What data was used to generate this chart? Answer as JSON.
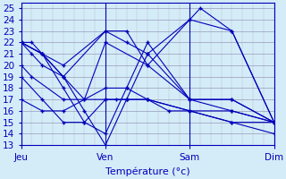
{
  "title": "Température (°c)",
  "bg_color": "#d4ecf7",
  "plot_bg_color": "#d4ecf7",
  "line_color": "#0000bb",
  "marker": "+",
  "grid_major_color": "#9999bb",
  "grid_minor_color": "#bbbbcc",
  "ylim": [
    13,
    25.5
  ],
  "yticks": [
    13,
    14,
    15,
    16,
    17,
    18,
    19,
    20,
    21,
    22,
    23,
    24,
    25
  ],
  "day_labels": [
    "Jeu",
    "Ven",
    "Sam",
    "Dim"
  ],
  "day_positions": [
    0,
    8,
    16,
    24
  ],
  "xlim": [
    0,
    24
  ],
  "series": [
    {
      "x": [
        0,
        1,
        2,
        4,
        8,
        10,
        12,
        16,
        17,
        20,
        24
      ],
      "y": [
        22,
        22,
        21,
        20,
        23,
        23,
        20,
        24,
        25,
        23,
        15
      ]
    },
    {
      "x": [
        0,
        1,
        2,
        4,
        8,
        10,
        12,
        16,
        20,
        24
      ],
      "y": [
        22,
        21,
        20,
        19,
        23,
        22,
        21,
        24,
        23,
        15
      ]
    },
    {
      "x": [
        0,
        2,
        4,
        6,
        8,
        12,
        16,
        20,
        24
      ],
      "y": [
        22,
        21,
        19,
        17,
        22,
        20,
        17,
        17,
        15
      ]
    },
    {
      "x": [
        0,
        2,
        4,
        6,
        8,
        10,
        12,
        16,
        20,
        24
      ],
      "y": [
        22,
        21,
        19,
        16,
        13,
        17,
        21,
        17,
        17,
        15
      ]
    },
    {
      "x": [
        0,
        2,
        4,
        6,
        8,
        10,
        12,
        16,
        20,
        24
      ],
      "y": [
        22,
        21,
        18,
        15,
        14,
        18,
        22,
        17,
        16,
        15
      ]
    },
    {
      "x": [
        0,
        1,
        4,
        8,
        10,
        12,
        16,
        20,
        24
      ],
      "y": [
        20,
        19,
        17,
        17,
        17,
        17,
        16,
        16,
        15
      ]
    },
    {
      "x": [
        0,
        2,
        4,
        6,
        8,
        9,
        10,
        12,
        14,
        16,
        20,
        24
      ],
      "y": [
        19,
        17,
        15,
        15,
        17,
        17,
        17,
        17,
        16,
        16,
        15,
        14
      ]
    },
    {
      "x": [
        0,
        2,
        4,
        6,
        8,
        10,
        12,
        16,
        20,
        24
      ],
      "y": [
        17,
        16,
        16,
        17,
        18,
        18,
        17,
        16,
        15,
        15
      ]
    }
  ],
  "xlabel_fontsize": 8,
  "tick_fontsize": 7.5
}
